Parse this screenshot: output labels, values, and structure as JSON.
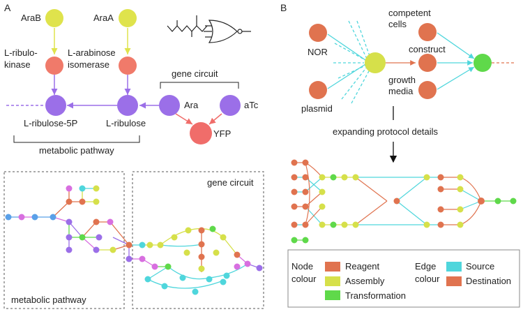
{
  "panel_a": {
    "label": "A",
    "nodes": {
      "arab": "AraB",
      "araa": "AraA",
      "kinase_line1": "L-ribulo-",
      "kinase_line2": "kinase",
      "isomerase_line1": "L-arabinose",
      "isomerase_line2": "isomerase",
      "ribulose5p": "L-ribulose-5P",
      "ribulose": "L-ribulose",
      "ara": "Ara",
      "atc": "aTc",
      "yfp": "YFP"
    },
    "gene_circuit_label": "gene circuit",
    "metabolic_pathway_label": "metabolic pathway",
    "graph_box_gene_circuit": "gene circuit",
    "graph_box_metabolic": "metabolic pathway"
  },
  "panel_b": {
    "label": "B",
    "nodes": {
      "nor": "NOR",
      "plasmid": "plasmid",
      "competent_line1": "competent",
      "competent_line2": "cells",
      "construct": "construct",
      "growth_line1": "growth",
      "growth_line2": "media"
    },
    "expanding_label": "expanding protocol details",
    "legend": {
      "node_title_line1": "Node",
      "node_title_line2": "colour",
      "edge_title_line1": "Edge",
      "edge_title_line2": "colour",
      "reagent": "Reagent",
      "assembly": "Assembly",
      "transformation": "Transformation",
      "source": "Source",
      "destination": "Destination"
    }
  },
  "colors": {
    "reagent": "#e0734f",
    "assembly": "#d6e04a",
    "transformation": "#5fd94a",
    "source": "#4fd6dc",
    "destination": "#e0734f",
    "enzyme_yellow": "#dfe34c",
    "enzyme_red": "#f07a6a",
    "metabolite_purple": "#9b6fe8",
    "yfp_red": "#f06d6a"
  }
}
